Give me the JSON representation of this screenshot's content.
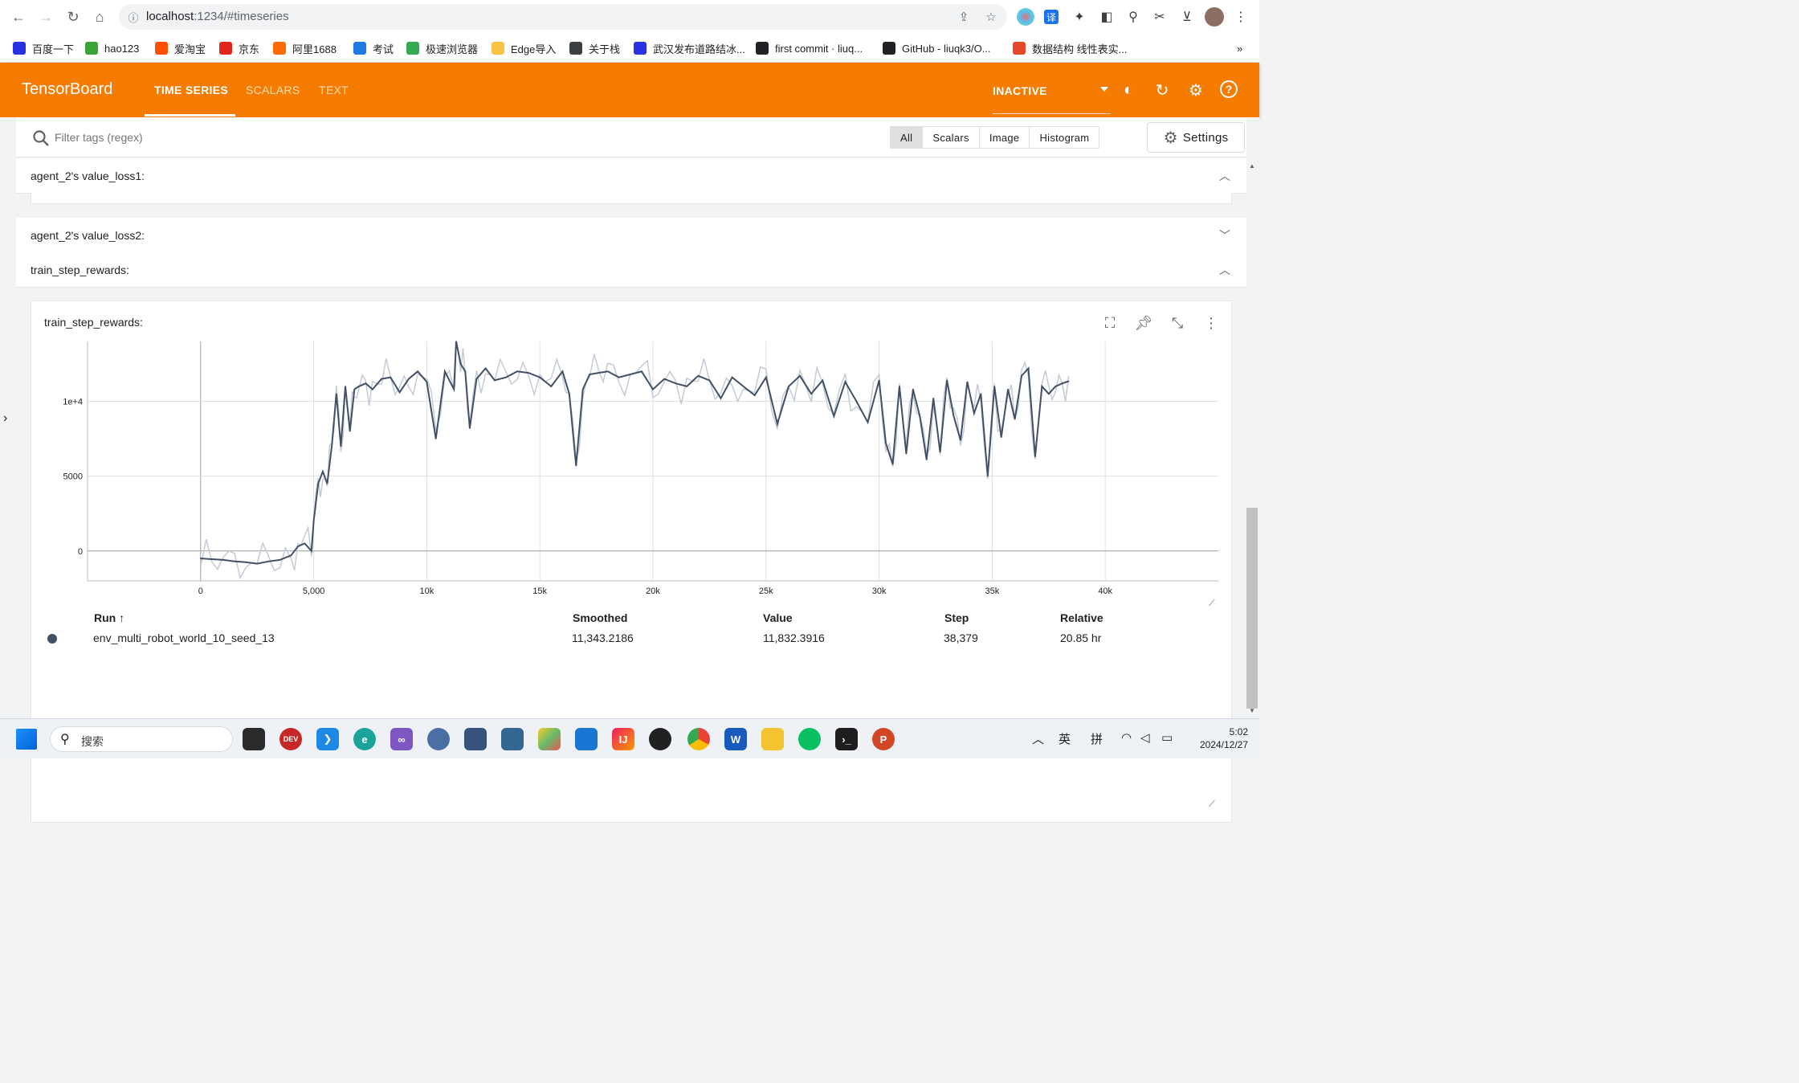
{
  "browser": {
    "url_host": "localhost",
    "url_path": ":1234/#timeseries",
    "bookmarks": [
      {
        "label": "百度一下",
        "color": "#2932e1"
      },
      {
        "label": "hao123",
        "color": "#3aa335"
      },
      {
        "label": "爱淘宝",
        "color": "#ff5000"
      },
      {
        "label": "京东",
        "color": "#e1251b"
      },
      {
        "label": "阿里1688",
        "color": "#ff6a00"
      },
      {
        "label": "考试",
        "color": "#1f7ae0"
      },
      {
        "label": "极速浏览器",
        "color": "#34a853"
      },
      {
        "label": "Edge导入",
        "color": "#f6c343"
      },
      {
        "label": "关于栈",
        "color": "#3c4043"
      },
      {
        "label": "武汉发布道路结冰...",
        "color": "#2932e1"
      },
      {
        "label": "first commit · liuq...",
        "color": "#202124"
      },
      {
        "label": "GitHub - liuqk3/O...",
        "color": "#202124"
      },
      {
        "label": "数据结构 线性表实...",
        "color": "#e8472a"
      }
    ],
    "more_label": "»"
  },
  "tensorboard": {
    "title": "TensorBoard",
    "tabs": [
      {
        "label": "TIME SERIES",
        "active": true
      },
      {
        "label": "SCALARS",
        "active": false
      },
      {
        "label": "TEXT",
        "active": false
      }
    ],
    "status": "INACTIVE",
    "accent": "#f57c00"
  },
  "toolbar": {
    "filter_placeholder": "Filter tags (regex)",
    "type_filters": [
      "All",
      "Scalars",
      "Image",
      "Histogram"
    ],
    "active_filter": "All",
    "settings_label": "Settings"
  },
  "groups": [
    {
      "label": "agent_2's value_loss1:",
      "chevron": "up"
    },
    {
      "label": "agent_2's value_loss2:",
      "chevron": "down"
    },
    {
      "label": "train_step_rewards:",
      "chevron": "up"
    }
  ],
  "card": {
    "title": "train_step_rewards:",
    "table": {
      "headers": {
        "run": "Run ↑",
        "smoothed": "Smoothed",
        "value": "Value",
        "step": "Step",
        "relative": "Relative"
      },
      "rows": [
        {
          "run": "env_multi_robot_world_10_seed_13",
          "smoothed": "11,343.2186",
          "value": "11,832.3916",
          "step": "38,379",
          "relative": "20.85 hr",
          "color": "#425066"
        }
      ]
    }
  },
  "chart_data": {
    "type": "line",
    "title": "train_step_rewards:",
    "xlim": [
      -5000,
      45000
    ],
    "ylim": [
      -2000,
      14000
    ],
    "x_ticks": [
      "0",
      "5,000",
      "10k",
      "15k",
      "20k",
      "25k",
      "30k",
      "35k",
      "40k"
    ],
    "x_tick_values": [
      0,
      5000,
      10000,
      15000,
      20000,
      25000,
      30000,
      35000,
      40000
    ],
    "y_ticks": [
      "0",
      "5000",
      "1e+4"
    ],
    "y_tick_values": [
      0,
      5000,
      10000
    ],
    "grid": true,
    "series": [
      {
        "name": "env_multi_robot_world_10_seed_13",
        "color": "#425066",
        "raw_color": "#c4cad6",
        "x": [
          0,
          500,
          1000,
          1500,
          2000,
          2500,
          3000,
          3500,
          4000,
          4300,
          4600,
          4900,
          5000,
          5200,
          5400,
          5600,
          5800,
          6000,
          6200,
          6400,
          6600,
          6800,
          7000,
          7300,
          7600,
          8000,
          8400,
          8800,
          9200,
          9600,
          10000,
          10400,
          10800,
          11200,
          11300,
          11500,
          11700,
          11900,
          12200,
          12600,
          13000,
          13500,
          14000,
          14500,
          15000,
          15500,
          16000,
          16300,
          16600,
          16900,
          17200,
          17600,
          18000,
          18500,
          19000,
          19500,
          20000,
          20500,
          21000,
          21500,
          22000,
          22500,
          23000,
          23500,
          24000,
          24500,
          25000,
          25500,
          26000,
          26500,
          27000,
          27500,
          28000,
          28500,
          29000,
          29500,
          30000,
          30300,
          30600,
          30900,
          31200,
          31500,
          31800,
          32100,
          32400,
          32700,
          33000,
          33300,
          33600,
          33900,
          34200,
          34500,
          34800,
          35100,
          35400,
          35700,
          36000,
          36300,
          36600,
          36900,
          37200,
          37500,
          37800,
          38100,
          38379
        ],
        "values": [
          -500,
          -550,
          -600,
          -700,
          -750,
          -850,
          -700,
          -600,
          -300,
          300,
          500,
          0,
          2000,
          4500,
          5300,
          4500,
          7000,
          10500,
          7000,
          11000,
          8000,
          10800,
          11000,
          11200,
          10800,
          11500,
          11600,
          10600,
          11500,
          12000,
          11300,
          7500,
          12000,
          10800,
          14000,
          12500,
          12000,
          8200,
          11500,
          12200,
          11400,
          11600,
          12000,
          11900,
          11600,
          11000,
          12000,
          10500,
          5700,
          10800,
          11800,
          11900,
          12000,
          11600,
          11800,
          12000,
          10800,
          11500,
          11200,
          11000,
          11700,
          11400,
          10200,
          11600,
          11000,
          10400,
          11600,
          8500,
          11000,
          11700,
          10500,
          11400,
          9000,
          11300,
          10000,
          8600,
          11400,
          7200,
          5800,
          11000,
          6500,
          10800,
          9000,
          6100,
          10200,
          6600,
          11400,
          9000,
          7400,
          11300,
          9200,
          10500,
          5000,
          11000,
          7600,
          10800,
          8800,
          11700,
          12200,
          6300,
          11000,
          10500,
          11000,
          11200,
          11343
        ]
      }
    ]
  },
  "taskbar": {
    "search_placeholder": "搜索",
    "ime_lang": "英",
    "ime_mode": "拼",
    "time": "5:02",
    "date": "2024/12/27"
  }
}
